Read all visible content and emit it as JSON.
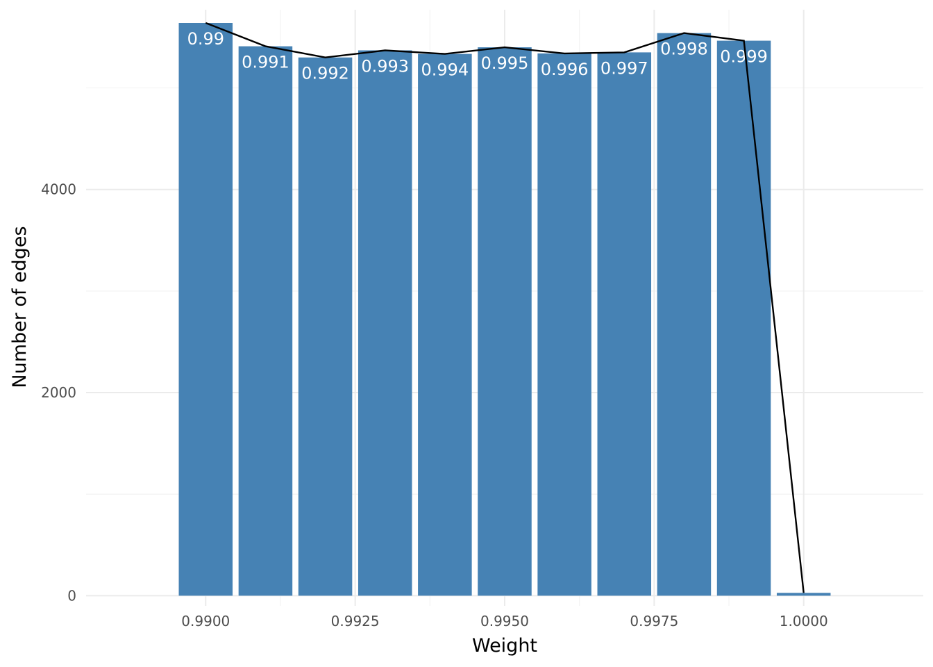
{
  "chart_data": {
    "type": "bar",
    "xlabel": "Weight",
    "ylabel": "Number of edges",
    "xlim": [
      0.988,
      1.002
    ],
    "ylim": [
      -100,
      5770
    ],
    "x_ticks": [
      0.99,
      0.9925,
      0.995,
      0.9975,
      1.0
    ],
    "x_tick_labels": [
      "0.9900",
      "0.9925",
      "0.9950",
      "0.9975",
      "1.0000"
    ],
    "y_ticks": [
      0,
      2000,
      4000
    ],
    "y_tick_labels": [
      "0",
      "2000",
      "4000"
    ],
    "bar_width": 0.0009,
    "bars": [
      {
        "x": 0.99,
        "value": 5640,
        "label": "0.99"
      },
      {
        "x": 0.991,
        "value": 5410,
        "label": "0.991"
      },
      {
        "x": 0.992,
        "value": 5300,
        "label": "0.992"
      },
      {
        "x": 0.993,
        "value": 5370,
        "label": "0.993"
      },
      {
        "x": 0.994,
        "value": 5335,
        "label": "0.994"
      },
      {
        "x": 0.995,
        "value": 5400,
        "label": "0.995"
      },
      {
        "x": 0.996,
        "value": 5340,
        "label": "0.996"
      },
      {
        "x": 0.997,
        "value": 5350,
        "label": "0.997"
      },
      {
        "x": 0.998,
        "value": 5540,
        "label": "0.998"
      },
      {
        "x": 0.999,
        "value": 5465,
        "label": "0.999"
      },
      {
        "x": 1.0,
        "value": 28,
        "label": ""
      }
    ],
    "grid": true,
    "bar_color": "#4682b4",
    "line_color": "#000000"
  }
}
